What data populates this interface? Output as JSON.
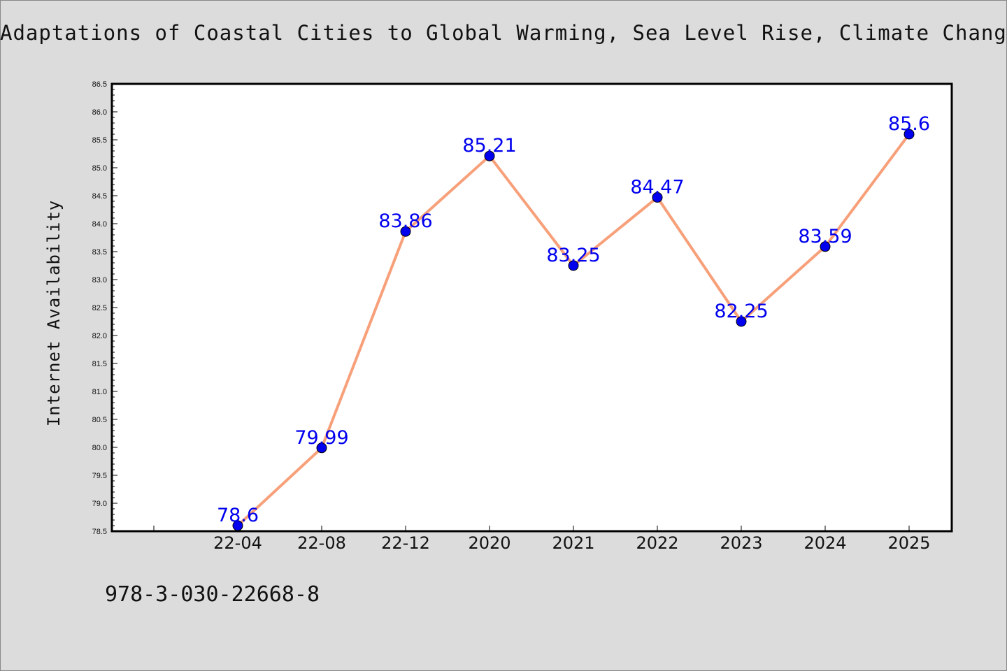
{
  "chart_data": {
    "type": "line",
    "title": "Adaptations of Coastal Cities to Global Warming, Sea Level Rise, Climate Change",
    "xlabel": "",
    "ylabel": "Internet Availability",
    "categories": [
      "",
      "22-04",
      "22-08",
      "22-12",
      "2020",
      "2021",
      "2022",
      "2023",
      "2024",
      "2025"
    ],
    "series": [
      {
        "values": [
          null,
          78.6,
          79.99,
          83.86,
          85.21,
          83.25,
          84.47,
          82.25,
          83.59,
          85.6
        ],
        "labels": [
          "",
          "78.6",
          "79.99",
          "83.86",
          "85.21",
          "83.25",
          "84.47",
          "82.25",
          "83.59",
          "85.6"
        ],
        "line_color": "#f7a07a",
        "marker_color": "#0000ee"
      }
    ],
    "ylim": [
      78.5,
      86.5
    ],
    "yticks": [
      "78.5",
      "79.0",
      "79.5",
      "80.0",
      "80.5",
      "81.0",
      "81.5",
      "82.0",
      "82.5",
      "83.0",
      "83.5",
      "84.0",
      "84.5",
      "85.0",
      "85.5",
      "86.0",
      "86.5"
    ],
    "grid": false,
    "legend": "none"
  },
  "footer": {
    "isbn": "978-3-030-22668-8"
  }
}
